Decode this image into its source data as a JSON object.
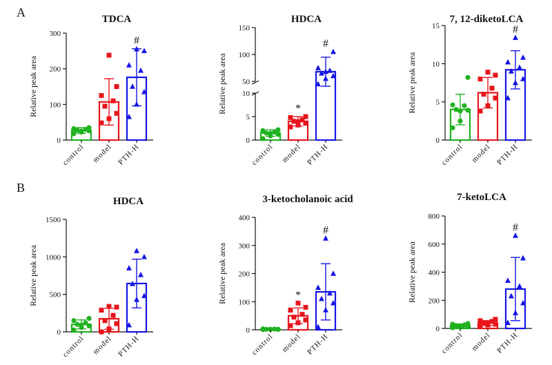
{
  "panel_labels": [
    "A",
    "B"
  ],
  "group_colors": {
    "control": "#1fb21f",
    "model": "#e8141b",
    "PTH-H": "#1414e6"
  },
  "chart_data": [
    {
      "type": "bar",
      "title": "TDCA",
      "ylabel": "Relative peak area",
      "categories": [
        "control",
        "model",
        "PTH-H"
      ],
      "markers": [
        "circle",
        "square",
        "triangle"
      ],
      "ylim": [
        0,
        300
      ],
      "yticks": [
        0,
        100,
        200,
        300
      ],
      "ytick_labels": [
        "0",
        "100",
        "200",
        "300"
      ],
      "means": [
        27,
        107,
        176
      ],
      "sd": [
        8,
        65,
        80
      ],
      "points": [
        [
          18,
          22,
          26,
          28,
          30,
          32,
          35,
          25
        ],
        [
          48,
          60,
          75,
          95,
          110,
          125,
          150,
          238
        ],
        [
          65,
          100,
          135,
          150,
          195,
          210,
          250,
          255
        ]
      ],
      "annotations": [
        {
          "category": "PTH-H",
          "label": "#"
        }
      ]
    },
    {
      "type": "bar",
      "title": "HDCA",
      "ylabel": "Relative peak area",
      "categories": [
        "control",
        "model",
        "PTH-H"
      ],
      "markers": [
        "circle",
        "square",
        "triangle"
      ],
      "axis_break": [
        10,
        50
      ],
      "ylim_lower": [
        0,
        10
      ],
      "ylim_upper": [
        50,
        150
      ],
      "yticks": [
        0,
        5,
        10,
        50,
        100,
        150
      ],
      "ytick_labels": [
        "0",
        "5",
        "10",
        "50",
        "100",
        "150"
      ],
      "means": [
        1.5,
        4.0,
        68
      ],
      "sd": [
        0.7,
        1.0,
        27
      ],
      "points": [
        [
          0.3,
          0.9,
          1.2,
          1.5,
          1.7,
          2.0,
          2.2,
          1.4
        ],
        [
          2.8,
          3.2,
          3.6,
          4.0,
          4.3,
          4.8,
          5.0,
          3.9
        ],
        [
          45,
          55,
          60,
          65,
          70,
          75,
          105,
          68
        ]
      ],
      "annotations": [
        {
          "category": "model",
          "label": "*"
        },
        {
          "category": "PTH-H",
          "label": "#"
        }
      ]
    },
    {
      "type": "bar",
      "title": "7, 12-diketoLCA",
      "ylabel": "Relative peak area",
      "categories": [
        "control",
        "model",
        "PTH-H"
      ],
      "markers": [
        "circle",
        "square",
        "triangle"
      ],
      "ylim": [
        0,
        15
      ],
      "yticks": [
        0,
        5,
        10,
        15
      ],
      "ytick_labels": [
        "0",
        "5",
        "10",
        "15"
      ],
      "means": [
        4.0,
        6.2,
        9.2
      ],
      "sd": [
        2.0,
        2.0,
        2.5
      ],
      "points": [
        [
          1.6,
          2.5,
          3.9,
          4.0,
          4.5,
          4.6,
          8.2,
          3.8
        ],
        [
          3.8,
          4.5,
          5.5,
          6.0,
          6.8,
          8.0,
          8.5,
          8.9
        ],
        [
          5.5,
          7.5,
          8.0,
          9.0,
          9.5,
          10.2,
          10.8,
          13.4
        ]
      ],
      "annotations": [
        {
          "category": "PTH-H",
          "label": "#"
        }
      ]
    },
    {
      "type": "bar",
      "title": "HDCA",
      "ylabel": "Relative peak area",
      "categories": [
        "control",
        "model",
        "PTH-H"
      ],
      "markers": [
        "circle",
        "square",
        "triangle"
      ],
      "ylim": [
        0,
        1500
      ],
      "yticks": [
        0,
        500,
        1000,
        1500
      ],
      "ytick_labels": [
        "0",
        "500",
        "1000",
        "1500"
      ],
      "means": [
        100,
        175,
        645
      ],
      "sd": [
        60,
        140,
        325
      ],
      "points": [
        [
          25,
          60,
          80,
          100,
          120,
          150,
          180,
          90
        ],
        [
          0,
          40,
          110,
          150,
          220,
          290,
          330,
          340
        ],
        [
          90,
          430,
          480,
          640,
          760,
          850,
          1000,
          1080
        ]
      ],
      "annotations": []
    },
    {
      "type": "bar",
      "title": "3-ketocholanoic acid",
      "ylabel": "Relative peak area",
      "categories": [
        "control",
        "model",
        "PTH-H"
      ],
      "markers": [
        "circle",
        "square",
        "triangle"
      ],
      "ylim": [
        0,
        400
      ],
      "yticks": [
        0,
        100,
        200,
        300,
        400
      ],
      "ytick_labels": [
        "0",
        "100",
        "200",
        "300",
        "400"
      ],
      "means": [
        2,
        50,
        135
      ],
      "sd": [
        1,
        28,
        100
      ],
      "points": [
        [
          1,
          1.5,
          2,
          2,
          2.5,
          3,
          1.5,
          2
        ],
        [
          15,
          25,
          35,
          45,
          55,
          70,
          80,
          95
        ],
        [
          10,
          70,
          95,
          110,
          130,
          150,
          200,
          325
        ]
      ],
      "annotations": [
        {
          "category": "model",
          "label": "*"
        },
        {
          "category": "PTH-H",
          "label": "#"
        }
      ]
    },
    {
      "type": "bar",
      "title": "7-ketoLCA",
      "ylabel": "Relative peak area",
      "categories": [
        "control",
        "model",
        "PTH-H"
      ],
      "markers": [
        "circle",
        "square",
        "triangle"
      ],
      "ylim": [
        0,
        800
      ],
      "yticks": [
        0,
        200,
        400,
        600,
        800
      ],
      "ytick_labels": [
        "0",
        "200",
        "400",
        "600",
        "800"
      ],
      "means": [
        20,
        38,
        280
      ],
      "sd": [
        12,
        18,
        225
      ],
      "points": [
        [
          5,
          10,
          15,
          20,
          25,
          30,
          35,
          18
        ],
        [
          15,
          25,
          30,
          40,
          50,
          55,
          65,
          35
        ],
        [
          40,
          110,
          180,
          230,
          300,
          340,
          500,
          660
        ]
      ],
      "annotations": [
        {
          "category": "PTH-H",
          "label": "#"
        }
      ]
    }
  ]
}
